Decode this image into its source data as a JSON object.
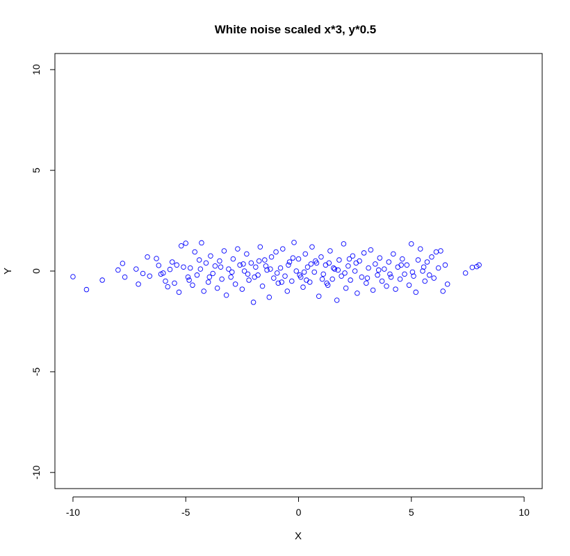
{
  "chart_data": {
    "type": "scatter",
    "title": "White noise scaled x*3, y*0.5",
    "xlabel": "X",
    "ylabel": "Y",
    "xlim": [
      -10.8,
      10.8
    ],
    "ylim": [
      -10.8,
      10.8
    ],
    "xticks": [
      -10,
      -5,
      0,
      5,
      10
    ],
    "yticks": [
      -10,
      -5,
      0,
      5,
      10
    ],
    "xtick_labels": [
      "-10",
      "-5",
      "0",
      "5",
      "10"
    ],
    "ytick_labels": [
      "-10",
      "-5",
      "0",
      "5",
      "10"
    ],
    "marker": "open-circle",
    "point_color": "#0000ff",
    "grid": false,
    "legend": "none",
    "series": [
      {
        "points": [
          [
            -10.0,
            -0.28
          ],
          [
            -9.4,
            -0.92
          ],
          [
            -8.7,
            -0.45
          ],
          [
            -8.0,
            0.05
          ],
          [
            -7.8,
            0.38
          ],
          [
            -7.7,
            -0.3
          ],
          [
            -7.2,
            0.1
          ],
          [
            -7.1,
            -0.65
          ],
          [
            -6.9,
            -0.12
          ],
          [
            -6.7,
            0.7
          ],
          [
            -6.6,
            -0.25
          ],
          [
            -6.3,
            0.62
          ],
          [
            -6.2,
            0.28
          ],
          [
            -6.0,
            -0.1
          ],
          [
            -5.9,
            -0.5
          ],
          [
            -5.8,
            -0.78
          ],
          [
            -5.7,
            0.08
          ],
          [
            -5.5,
            -0.6
          ],
          [
            -5.4,
            0.3
          ],
          [
            -5.3,
            -1.05
          ],
          [
            -5.2,
            1.25
          ],
          [
            -5.1,
            0.2
          ],
          [
            -5.0,
            1.38
          ],
          [
            -4.9,
            -0.3
          ],
          [
            -4.8,
            0.15
          ],
          [
            -4.7,
            -0.7
          ],
          [
            -4.6,
            0.95
          ],
          [
            -4.5,
            -0.2
          ],
          [
            -4.4,
            0.55
          ],
          [
            -4.3,
            1.4
          ],
          [
            -4.2,
            -1.0
          ],
          [
            -4.1,
            0.4
          ],
          [
            -4.0,
            -0.55
          ],
          [
            -3.9,
            0.75
          ],
          [
            -3.8,
            -0.12
          ],
          [
            -3.7,
            0.25
          ],
          [
            -3.6,
            -0.85
          ],
          [
            -3.5,
            0.5
          ],
          [
            -3.4,
            -0.4
          ],
          [
            -3.3,
            1.0
          ],
          [
            -3.2,
            -1.2
          ],
          [
            -3.1,
            0.1
          ],
          [
            -3.0,
            -0.3
          ],
          [
            -2.9,
            0.6
          ],
          [
            -2.8,
            -0.65
          ],
          [
            -2.7,
            1.1
          ],
          [
            -2.6,
            0.3
          ],
          [
            -2.5,
            -0.9
          ],
          [
            -2.4,
            0.0
          ],
          [
            -2.3,
            0.85
          ],
          [
            -2.2,
            -0.45
          ],
          [
            -2.1,
            0.4
          ],
          [
            -2.0,
            -1.55
          ],
          [
            -1.9,
            0.2
          ],
          [
            -1.8,
            -0.2
          ],
          [
            -1.7,
            1.2
          ],
          [
            -1.6,
            -0.75
          ],
          [
            -1.5,
            0.55
          ],
          [
            -1.4,
            0.05
          ],
          [
            -1.3,
            -1.3
          ],
          [
            -1.2,
            0.7
          ],
          [
            -1.1,
            -0.35
          ],
          [
            -1.0,
            0.95
          ],
          [
            -0.9,
            -0.6
          ],
          [
            -0.8,
            0.15
          ],
          [
            -0.7,
            1.1
          ],
          [
            -0.6,
            -0.25
          ],
          [
            -0.5,
            -1.0
          ],
          [
            -0.4,
            0.45
          ],
          [
            -0.3,
            -0.5
          ],
          [
            -0.2,
            1.42
          ],
          [
            -0.1,
            0.0
          ],
          [
            0.0,
            0.6
          ],
          [
            0.1,
            -0.3
          ],
          [
            0.2,
            -0.8
          ],
          [
            0.3,
            0.85
          ],
          [
            0.4,
            0.2
          ],
          [
            0.5,
            -0.55
          ],
          [
            0.6,
            1.2
          ],
          [
            0.7,
            -0.05
          ],
          [
            0.8,
            0.4
          ],
          [
            0.9,
            -1.25
          ],
          [
            1.0,
            0.7
          ],
          [
            1.1,
            -0.15
          ],
          [
            1.2,
            0.3
          ],
          [
            1.3,
            -0.7
          ],
          [
            1.4,
            1.0
          ],
          [
            1.5,
            -0.4
          ],
          [
            1.6,
            0.1
          ],
          [
            1.7,
            -1.45
          ],
          [
            1.8,
            0.55
          ],
          [
            1.9,
            -0.25
          ],
          [
            2.0,
            1.35
          ],
          [
            2.1,
            -0.85
          ],
          [
            2.2,
            0.25
          ],
          [
            2.3,
            -0.45
          ],
          [
            2.4,
            0.75
          ],
          [
            2.5,
            0.0
          ],
          [
            2.6,
            -1.1
          ],
          [
            2.7,
            0.5
          ],
          [
            2.8,
            -0.3
          ],
          [
            2.9,
            0.9
          ],
          [
            3.0,
            -0.6
          ],
          [
            3.1,
            0.15
          ],
          [
            3.2,
            1.05
          ],
          [
            3.3,
            -0.95
          ],
          [
            3.4,
            0.35
          ],
          [
            3.5,
            -0.2
          ],
          [
            3.6,
            0.65
          ],
          [
            3.7,
            -0.5
          ],
          [
            3.8,
            0.1
          ],
          [
            3.9,
            -0.75
          ],
          [
            4.0,
            0.45
          ],
          [
            4.1,
            -0.3
          ],
          [
            4.2,
            0.85
          ],
          [
            4.3,
            -0.9
          ],
          [
            4.4,
            0.2
          ],
          [
            4.5,
            -0.4
          ],
          [
            4.6,
            0.6
          ],
          [
            4.7,
            -0.15
          ],
          [
            4.8,
            0.3
          ],
          [
            4.9,
            -0.7
          ],
          [
            5.0,
            1.35
          ],
          [
            5.1,
            -0.25
          ],
          [
            5.2,
            -1.05
          ],
          [
            5.3,
            0.55
          ],
          [
            5.4,
            1.1
          ],
          [
            5.5,
            0.0
          ],
          [
            5.6,
            -0.5
          ],
          [
            5.7,
            0.45
          ],
          [
            5.8,
            -0.2
          ],
          [
            5.9,
            0.7
          ],
          [
            6.0,
            -0.35
          ],
          [
            6.1,
            0.95
          ],
          [
            6.2,
            0.15
          ],
          [
            6.3,
            1.0
          ],
          [
            6.4,
            -1.0
          ],
          [
            6.5,
            0.3
          ],
          [
            6.6,
            -0.65
          ],
          [
            7.4,
            -0.1
          ],
          [
            7.7,
            0.18
          ],
          [
            7.9,
            0.22
          ],
          [
            8.0,
            0.3
          ],
          [
            -6.1,
            -0.15
          ],
          [
            -5.6,
            0.45
          ],
          [
            -4.85,
            -0.45
          ],
          [
            -4.35,
            0.1
          ],
          [
            -3.95,
            -0.3
          ],
          [
            -3.45,
            0.2
          ],
          [
            -2.95,
            -0.05
          ],
          [
            -2.45,
            0.35
          ],
          [
            -1.95,
            -0.3
          ],
          [
            -1.45,
            0.25
          ],
          [
            -0.95,
            -0.1
          ],
          [
            -0.45,
            0.3
          ],
          [
            0.05,
            -0.2
          ],
          [
            0.55,
            0.35
          ],
          [
            1.05,
            -0.4
          ],
          [
            1.55,
            0.15
          ],
          [
            2.05,
            -0.1
          ],
          [
            2.55,
            0.4
          ],
          [
            3.05,
            -0.35
          ],
          [
            3.55,
            0.05
          ],
          [
            4.05,
            -0.15
          ],
          [
            4.55,
            0.3
          ],
          [
            5.05,
            -0.05
          ],
          [
            5.55,
            0.2
          ],
          [
            -1.25,
            0.1
          ],
          [
            -0.75,
            -0.55
          ],
          [
            -0.25,
            0.65
          ],
          [
            0.25,
            -0.05
          ],
          [
            0.75,
            0.5
          ],
          [
            1.25,
            -0.6
          ],
          [
            1.75,
            0.05
          ],
          [
            2.25,
            0.6
          ],
          [
            -2.25,
            -0.15
          ],
          [
            -1.75,
            0.5
          ],
          [
            0.35,
            -0.45
          ],
          [
            1.35,
            0.4
          ]
        ]
      }
    ]
  }
}
